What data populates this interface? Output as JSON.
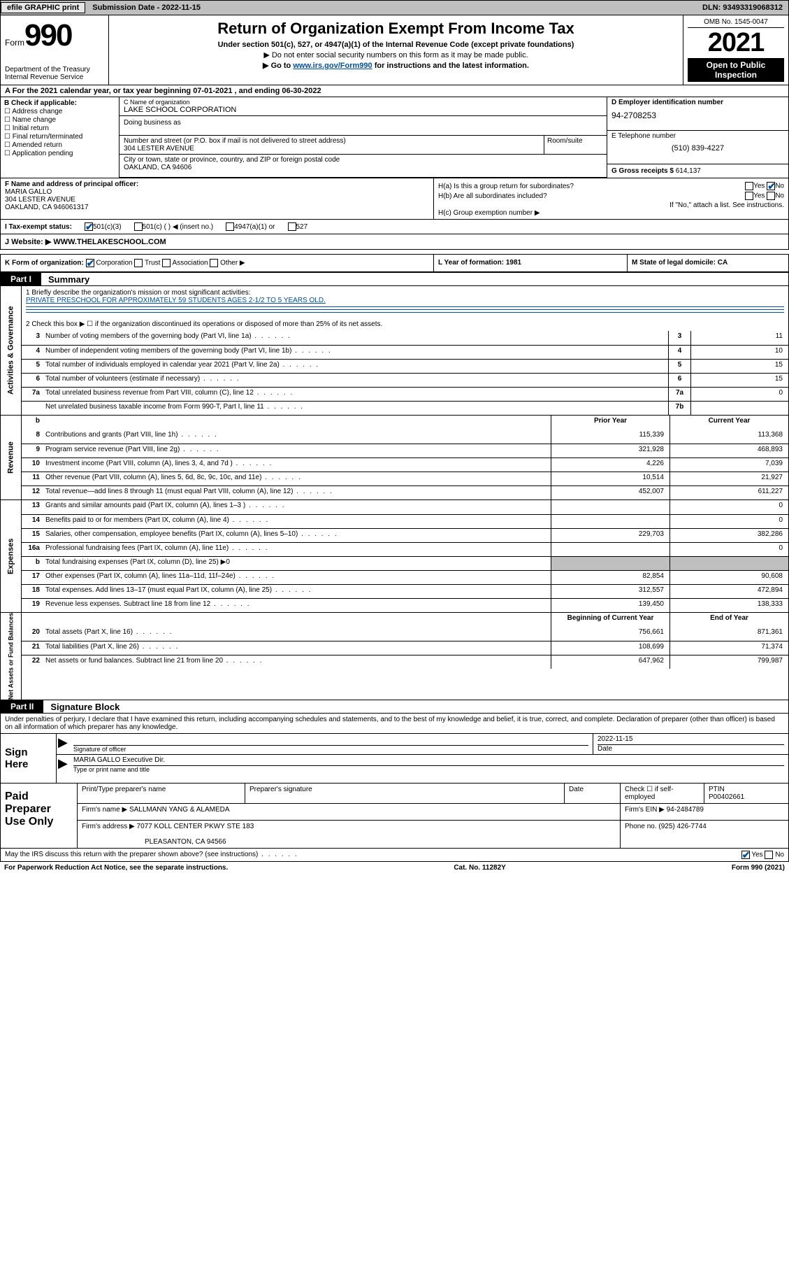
{
  "topbar": {
    "efile": "efile GRAPHIC print",
    "subdate_label": "Submission Date - ",
    "subdate": "2022-11-15",
    "dln_label": "DLN: ",
    "dln": "93493319068312"
  },
  "header": {
    "form_word": "Form",
    "form_num": "990",
    "dept": "Department of the Treasury\nInternal Revenue Service",
    "title": "Return of Organization Exempt From Income Tax",
    "sub1": "Under section 501(c), 527, or 4947(a)(1) of the Internal Revenue Code (except private foundations)",
    "sub2": "▶ Do not enter social security numbers on this form as it may be made public.",
    "sub3_pre": "▶ Go to ",
    "sub3_link": "www.irs.gov/Form990",
    "sub3_post": " for instructions and the latest information.",
    "omb": "OMB No. 1545-0047",
    "year": "2021",
    "open": "Open to Public Inspection"
  },
  "row_a": "A For the 2021 calendar year, or tax year beginning 07-01-2021   , and ending 06-30-2022",
  "colB": {
    "label": "B Check if applicable:",
    "opts": [
      "Address change",
      "Name change",
      "Initial return",
      "Final return/terminated",
      "Amended return",
      "Application pending"
    ]
  },
  "org": {
    "name_label": "C Name of organization",
    "name": "LAKE SCHOOL CORPORATION",
    "dba_label": "Doing business as",
    "street_label": "Number and street (or P.O. box if mail is not delivered to street address)",
    "street": "304 LESTER AVENUE",
    "room_label": "Room/suite",
    "city_label": "City or town, state or province, country, and ZIP or foreign postal code",
    "city": "OAKLAND, CA   94606"
  },
  "colDE": {
    "ein_label": "D Employer identification number",
    "ein": "94-2708253",
    "tel_label": "E Telephone number",
    "tel": "(510) 839-4227",
    "gross_label": "G Gross receipts $ ",
    "gross": "614,137"
  },
  "f": {
    "label": "F  Name and address of principal officer:",
    "name": "MARIA GALLO",
    "addr1": "304 LESTER AVENUE",
    "addr2": "OAKLAND, CA  946061317"
  },
  "h": {
    "a": "H(a)  Is this a group return for subordinates?",
    "a_yes": "Yes",
    "a_no": "No",
    "b": "H(b)  Are all subordinates included?",
    "b_yes": "Yes",
    "b_no": "No",
    "b_note": "If \"No,\" attach a list. See instructions.",
    "c": "H(c)  Group exemption number ▶"
  },
  "i": {
    "label": "I   Tax-exempt status:",
    "o1": "501(c)(3)",
    "o2": "501(c) (  ) ◀ (insert no.)",
    "o3": "4947(a)(1) or",
    "o4": "527"
  },
  "j": {
    "label": "J   Website: ▶",
    "val": "  WWW.THELAKESCHOOL.COM"
  },
  "k": {
    "label": "K Form of organization:",
    "o1": "Corporation",
    "o2": "Trust",
    "o3": "Association",
    "o4": "Other ▶",
    "l": "L Year of formation: 1981",
    "m": "M State of legal domicile: CA"
  },
  "part1": {
    "tab": "Part I",
    "title": "Summary"
  },
  "mission": {
    "label": "1   Briefly describe the organization's mission or most significant activities:",
    "text": "PRIVATE PRESCHOOL FOR APPROXIMATELY 59 STUDENTS AGES 2-1/2 TO 5 YEARS OLD."
  },
  "line2": "2   Check this box ▶ ☐  if the organization discontinued its operations or disposed of more than 25% of its net assets.",
  "gov_rows": [
    {
      "n": "3",
      "d": "Number of voting members of the governing body (Part VI, line 1a)",
      "c": "3",
      "v": "11"
    },
    {
      "n": "4",
      "d": "Number of independent voting members of the governing body (Part VI, line 1b)",
      "c": "4",
      "v": "10"
    },
    {
      "n": "5",
      "d": "Total number of individuals employed in calendar year 2021 (Part V, line 2a)",
      "c": "5",
      "v": "15"
    },
    {
      "n": "6",
      "d": "Total number of volunteers (estimate if necessary)",
      "c": "6",
      "v": "15"
    },
    {
      "n": "7a",
      "d": "Total unrelated business revenue from Part VIII, column (C), line 12",
      "c": "7a",
      "v": "0"
    },
    {
      "n": "",
      "d": "Net unrelated business taxable income from Form 990-T, Part I, line 11",
      "c": "7b",
      "v": ""
    }
  ],
  "py_hdr": {
    "b": "b",
    "prior": "Prior Year",
    "curr": "Current Year"
  },
  "rev_rows": [
    {
      "n": "8",
      "d": "Contributions and grants (Part VIII, line 1h)",
      "p": "115,339",
      "c": "113,368"
    },
    {
      "n": "9",
      "d": "Program service revenue (Part VIII, line 2g)",
      "p": "321,928",
      "c": "468,893"
    },
    {
      "n": "10",
      "d": "Investment income (Part VIII, column (A), lines 3, 4, and 7d )",
      "p": "4,226",
      "c": "7,039"
    },
    {
      "n": "11",
      "d": "Other revenue (Part VIII, column (A), lines 5, 6d, 8c, 9c, 10c, and 11e)",
      "p": "10,514",
      "c": "21,927"
    },
    {
      "n": "12",
      "d": "Total revenue—add lines 8 through 11 (must equal Part VIII, column (A), line 12)",
      "p": "452,007",
      "c": "611,227"
    }
  ],
  "exp_rows": [
    {
      "n": "13",
      "d": "Grants and similar amounts paid (Part IX, column (A), lines 1–3 )",
      "p": "",
      "c": "0"
    },
    {
      "n": "14",
      "d": "Benefits paid to or for members (Part IX, column (A), line 4)",
      "p": "",
      "c": "0"
    },
    {
      "n": "15",
      "d": "Salaries, other compensation, employee benefits (Part IX, column (A), lines 5–10)",
      "p": "229,703",
      "c": "382,286"
    },
    {
      "n": "16a",
      "d": "Professional fundraising fees (Part IX, column (A), line 11e)",
      "p": "",
      "c": "0"
    },
    {
      "n": "b",
      "d": "Total fundraising expenses (Part IX, column (D), line 25) ▶0",
      "p": "GREY",
      "c": "GREY"
    },
    {
      "n": "17",
      "d": "Other expenses (Part IX, column (A), lines 11a–11d, 11f–24e)",
      "p": "82,854",
      "c": "90,608"
    },
    {
      "n": "18",
      "d": "Total expenses. Add lines 13–17 (must equal Part IX, column (A), line 25)",
      "p": "312,557",
      "c": "472,894"
    },
    {
      "n": "19",
      "d": "Revenue less expenses. Subtract line 18 from line 12",
      "p": "139,450",
      "c": "138,333"
    }
  ],
  "na_hdr": {
    "prior": "Beginning of Current Year",
    "curr": "End of Year"
  },
  "na_rows": [
    {
      "n": "20",
      "d": "Total assets (Part X, line 16)",
      "p": "756,661",
      "c": "871,361"
    },
    {
      "n": "21",
      "d": "Total liabilities (Part X, line 26)",
      "p": "108,699",
      "c": "71,374"
    },
    {
      "n": "22",
      "d": "Net assets or fund balances. Subtract line 21 from line 20",
      "p": "647,962",
      "c": "799,987"
    }
  ],
  "vlabels": {
    "gov": "Activities & Governance",
    "rev": "Revenue",
    "exp": "Expenses",
    "na": "Net Assets or Fund Balances"
  },
  "part2": {
    "tab": "Part II",
    "title": "Signature Block",
    "decl": "Under penalties of perjury, I declare that I have examined this return, including accompanying schedules and statements, and to the best of my knowledge and belief, it is true, correct, and complete. Declaration of preparer (other than officer) is based on all information of which preparer has any knowledge."
  },
  "sign": {
    "label": "Sign Here",
    "sig_label": "Signature of officer",
    "date": "2022-11-15",
    "date_label": "Date",
    "name": "MARIA GALLO  Executive Dir.",
    "name_label": "Type or print name and title"
  },
  "paid": {
    "label": "Paid Preparer Use Only",
    "h1": "Print/Type preparer's name",
    "h2": "Preparer's signature",
    "h3": "Date",
    "h4_a": "Check ☐ if self-employed",
    "h4_b": "PTIN",
    "ptin": "P00402661",
    "firm_label": "Firm's name    ▶",
    "firm": "SALLMANN YANG & ALAMEDA",
    "ein_label": "Firm's EIN ▶",
    "ein": "94-2484789",
    "addr_label": "Firm's address ▶",
    "addr1": "7077 KOLL CENTER PKWY STE 183",
    "addr2": "PLEASANTON, CA  94566",
    "phone_label": "Phone no.",
    "phone": "(925) 426-7744"
  },
  "discuss": {
    "q": "May the IRS discuss this return with the preparer shown above? (see instructions)",
    "yes": "Yes",
    "no": "No"
  },
  "footer": {
    "left": "For Paperwork Reduction Act Notice, see the separate instructions.",
    "mid": "Cat. No. 11282Y",
    "right": "Form 990 (2021)"
  }
}
